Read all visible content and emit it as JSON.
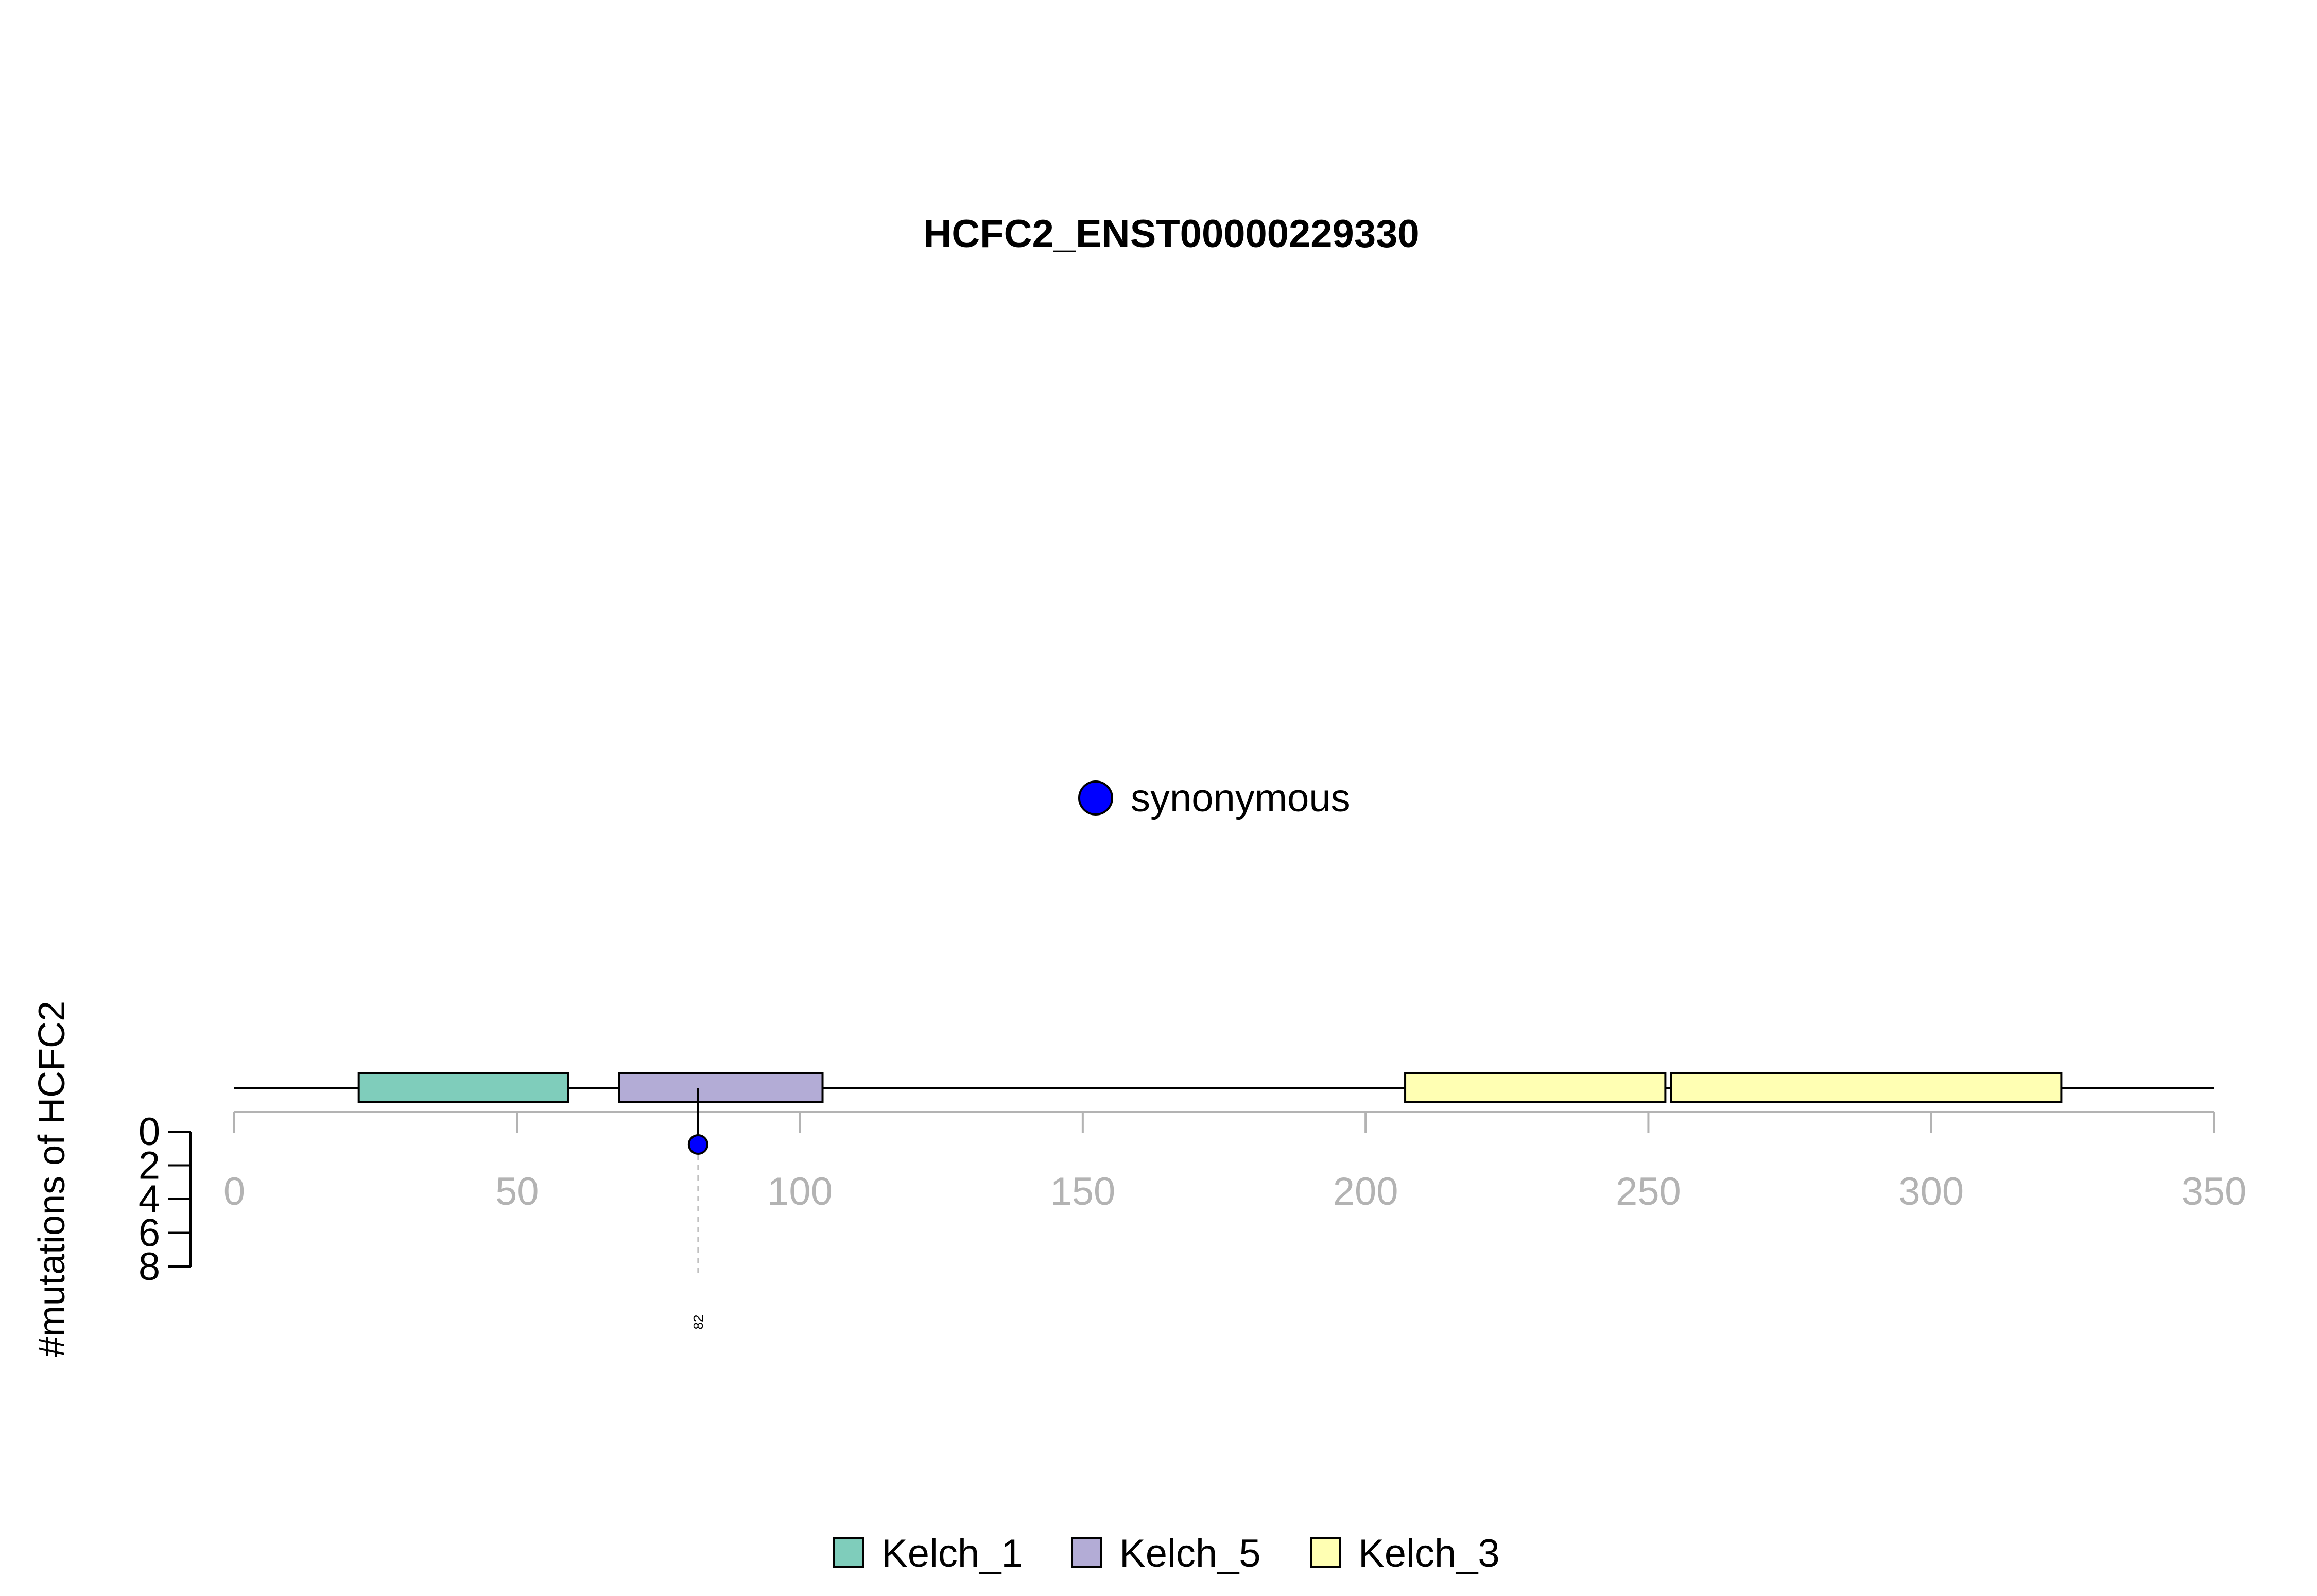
{
  "chart_data": {
    "type": "lollipop",
    "title": "HCFC2_ENST00000229330",
    "ylabel": "#mutations of HCFC2",
    "x_axis": {
      "range": [
        0,
        350
      ],
      "ticks": [
        0,
        50,
        100,
        150,
        200,
        250,
        300,
        350
      ],
      "tick_color": "#b3b3b3"
    },
    "y_axis": {
      "range": [
        0,
        8
      ],
      "ticks": [
        0,
        2,
        4,
        6,
        8
      ],
      "inverted": true
    },
    "protein_length": 350,
    "domains": [
      {
        "name": "Kelch_1",
        "start": 22,
        "end": 59,
        "color": "#7fcdbb"
      },
      {
        "name": "Kelch_5",
        "start": 68,
        "end": 104,
        "color": "#b3acd6"
      },
      {
        "name": "Kelch_3",
        "start": 207,
        "end": 253,
        "color": "#ffffb3"
      },
      {
        "name": "Kelch_3",
        "start": 254,
        "end": 323,
        "color": "#ffffb3"
      }
    ],
    "mutations": [
      {
        "position": 82,
        "count": 1,
        "type": "synonymous",
        "label": "82",
        "color": "#0000ff"
      }
    ],
    "mutation_legend": [
      {
        "name": "synonymous",
        "color": "#0000ff"
      }
    ],
    "domain_legend": [
      {
        "name": "Kelch_1",
        "color": "#7fcdbb"
      },
      {
        "name": "Kelch_5",
        "color": "#b3acd6"
      },
      {
        "name": "Kelch_3",
        "color": "#ffffb3"
      }
    ]
  }
}
